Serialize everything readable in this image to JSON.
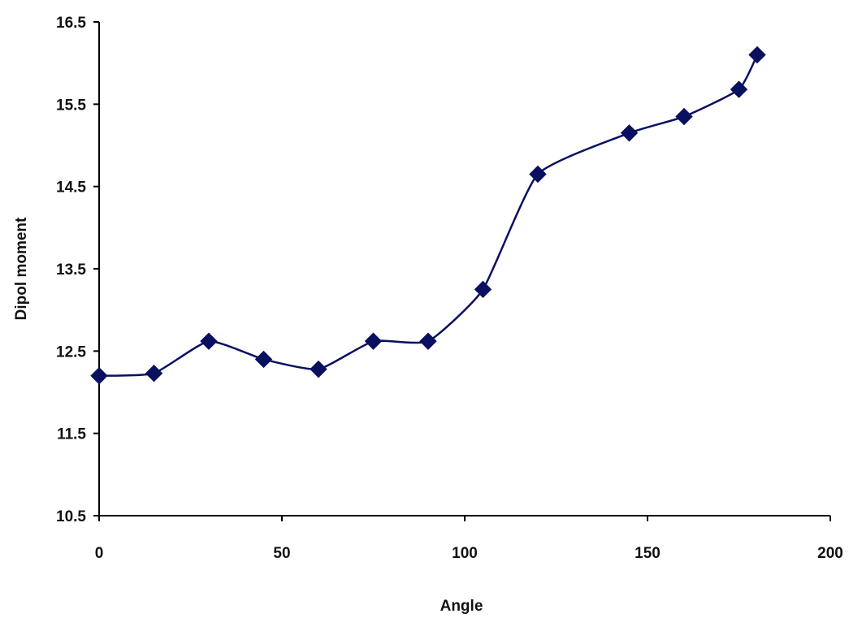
{
  "chart_data": {
    "type": "line",
    "title": "",
    "xlabel": "Angle",
    "ylabel": "Dipol moment",
    "xlim": [
      0,
      200
    ],
    "ylim": [
      10.5,
      16.5
    ],
    "x_ticks": [
      "0",
      "50",
      "100",
      "150",
      "200"
    ],
    "y_ticks": [
      "10.5",
      "11.5",
      "12.5",
      "13.5",
      "14.5",
      "15.5",
      "16.5"
    ],
    "grid": false,
    "legend": "none",
    "marker": "diamond",
    "smoothed": true,
    "series": [
      {
        "color": "#0a1060",
        "points": [
          {
            "x": 0,
            "y": 12.2
          },
          {
            "x": 15,
            "y": 12.23
          },
          {
            "x": 30,
            "y": 12.62
          },
          {
            "x": 45,
            "y": 12.4
          },
          {
            "x": 60,
            "y": 12.28
          },
          {
            "x": 75,
            "y": 12.62
          },
          {
            "x": 90,
            "y": 12.62
          },
          {
            "x": 105,
            "y": 13.25
          },
          {
            "x": 120,
            "y": 14.65
          },
          {
            "x": 145,
            "y": 15.15
          },
          {
            "x": 160,
            "y": 15.35
          },
          {
            "x": 175,
            "y": 15.68
          },
          {
            "x": 180,
            "y": 16.1
          }
        ]
      }
    ]
  }
}
